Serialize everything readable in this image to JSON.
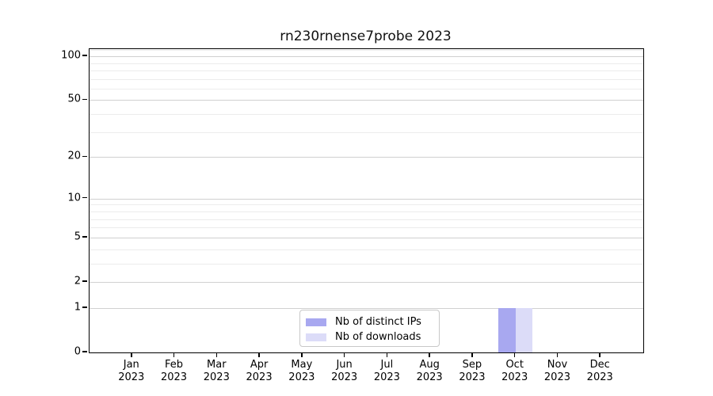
{
  "figure": {
    "background": "#ffffff"
  },
  "chart_data": {
    "type": "bar",
    "title": "rn230rnense7probe 2023",
    "categories": [
      "Jan 2023",
      "Feb 2023",
      "Mar 2023",
      "Apr 2023",
      "May 2023",
      "Jun 2023",
      "Jul 2023",
      "Aug 2023",
      "Sep 2023",
      "Oct 2023",
      "Nov 2023",
      "Dec 2023"
    ],
    "series": [
      {
        "name": "Nb of distinct IPs",
        "color": "#a8a8f0",
        "values": [
          0,
          0,
          0,
          0,
          0,
          0,
          0,
          0,
          0,
          1,
          0,
          0
        ]
      },
      {
        "name": "Nb of downloads",
        "color": "#dcdcf8",
        "values": [
          0,
          0,
          0,
          0,
          0,
          0,
          0,
          0,
          0,
          1,
          0,
          0
        ]
      }
    ],
    "y_scale": "log1p",
    "ylim": [
      0,
      112
    ],
    "y_major_ticks": [
      100,
      50,
      20,
      10,
      5,
      2,
      1,
      0
    ],
    "y_minor_ticks": [
      110,
      90,
      80,
      70,
      60,
      40,
      30,
      9,
      8,
      7,
      6,
      4,
      3
    ],
    "grid": {
      "major_color": "#d0d0d0",
      "minor_color": "#ececec"
    },
    "axis_color": "#000000",
    "legend_position": "lower-center"
  }
}
